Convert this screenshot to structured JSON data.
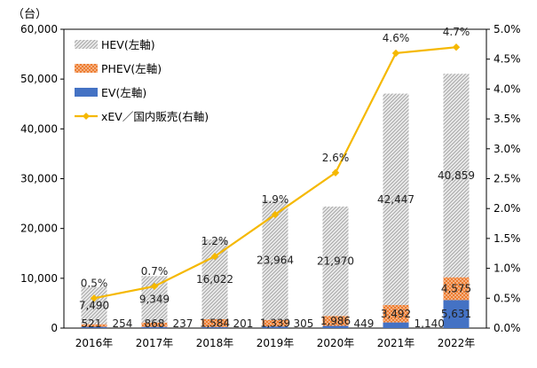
{
  "chart_data": {
    "type": "bar",
    "stacked": true,
    "y_unit_label": "（台）",
    "categories": [
      "2016年",
      "2017年",
      "2018年",
      "2019年",
      "2020年",
      "2021年",
      "2022年"
    ],
    "series": [
      {
        "name": "EV(左軸)",
        "axis": "left",
        "type": "bar",
        "color": "#4472c4",
        "values": [
          254,
          237,
          201,
          305,
          449,
          1140,
          5631
        ],
        "labels": [
          "254",
          "237",
          "201",
          "305",
          "449",
          "1,140",
          "5,631"
        ]
      },
      {
        "name": "PHEV(左軸)",
        "axis": "left",
        "type": "bar",
        "color": "#ed7d31",
        "values": [
          521,
          868,
          1584,
          1339,
          1986,
          3492,
          4575
        ],
        "labels": [
          "521",
          "868",
          "1,584",
          "1,339",
          "1,986",
          "3,492",
          "4,575"
        ]
      },
      {
        "name": "HEV(左軸)",
        "axis": "left",
        "type": "bar",
        "color": "#bfbfbf",
        "values": [
          7490,
          9349,
          16022,
          23964,
          21970,
          42447,
          40859
        ],
        "labels": [
          "7,490",
          "9,349",
          "16,022",
          "23,964",
          "21,970",
          "42,447",
          "40,859"
        ]
      },
      {
        "name": "xEV／国内販売(右軸)",
        "axis": "right",
        "type": "line",
        "color": "#f5b800",
        "values": [
          0.5,
          0.7,
          1.2,
          1.9,
          2.6,
          4.6,
          4.7
        ],
        "labels": [
          "0.5%",
          "0.7%",
          "1.2%",
          "1.9%",
          "2.6%",
          "4.6%",
          "4.7%"
        ]
      }
    ],
    "legend_order": [
      "HEV(左軸)",
      "PHEV(左軸)",
      "EV(左軸)",
      "xEV／国内販売(右軸)"
    ],
    "legend_position": "top-left",
    "y_left": {
      "min": 0,
      "max": 60000,
      "ticks": [
        0,
        10000,
        20000,
        30000,
        40000,
        50000,
        60000
      ],
      "tick_labels": [
        "0",
        "10,000",
        "20,000",
        "30,000",
        "40,000",
        "50,000",
        "60,000"
      ]
    },
    "y_right": {
      "min": 0,
      "max": 5.0,
      "ticks": [
        0,
        0.5,
        1.0,
        1.5,
        2.0,
        2.5,
        3.0,
        3.5,
        4.0,
        4.5,
        5.0
      ],
      "tick_labels": [
        "0.0%",
        "0.5%",
        "1.0%",
        "1.5%",
        "2.0%",
        "2.5%",
        "3.0%",
        "3.5%",
        "4.0%",
        "4.5%",
        "5.0%"
      ]
    },
    "grid": false
  }
}
